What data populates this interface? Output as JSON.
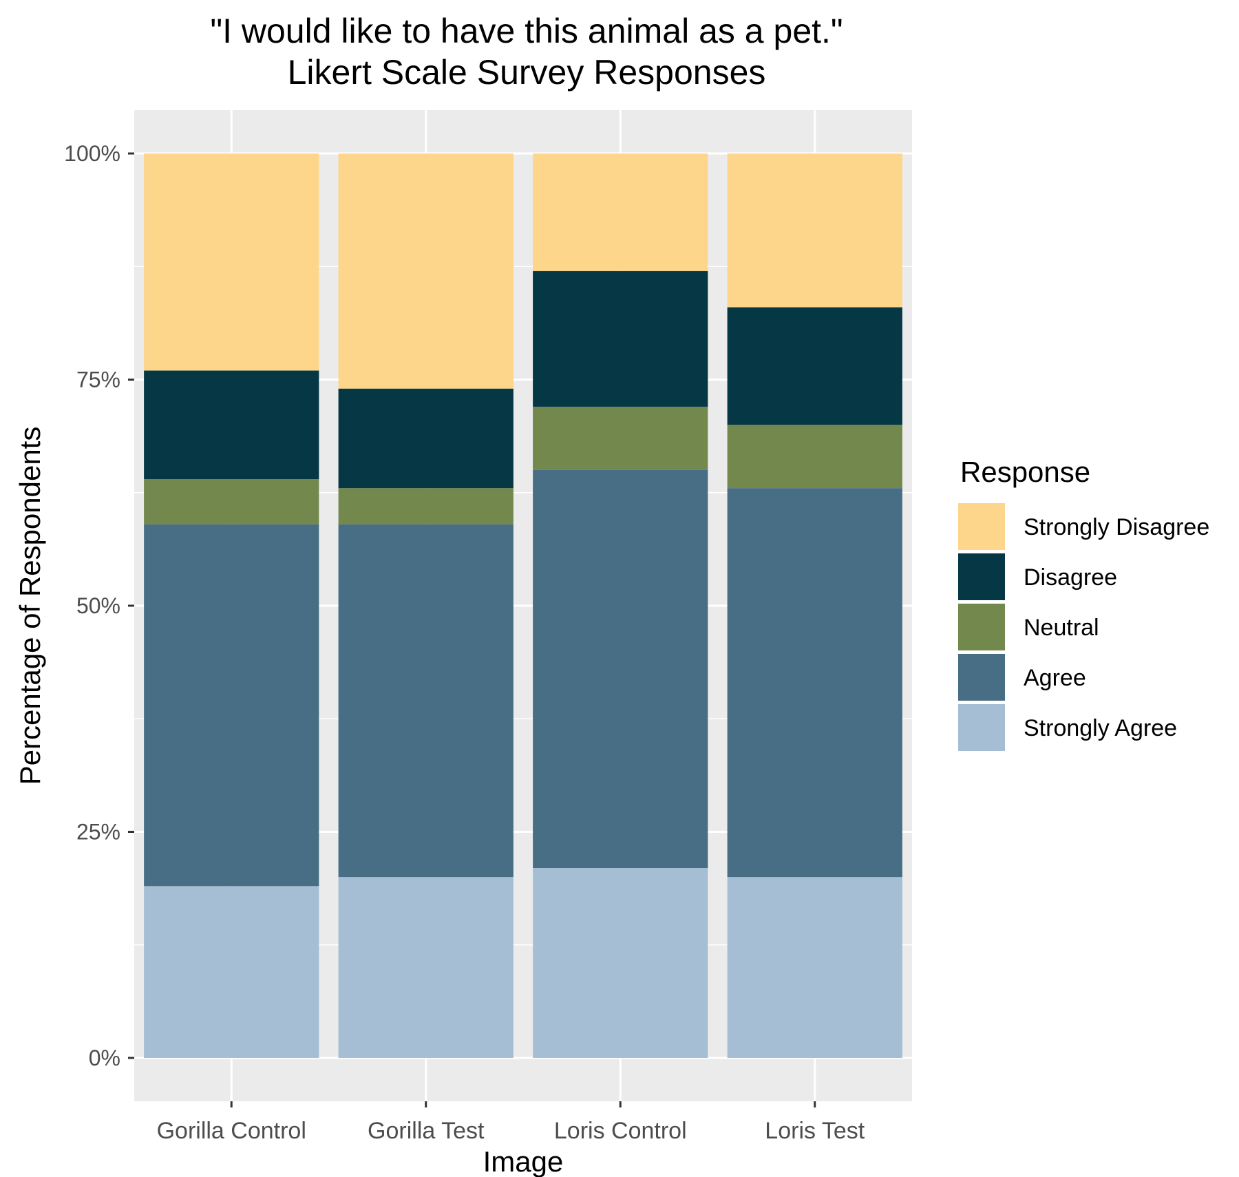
{
  "chart_data": {
    "type": "bar",
    "stacked": true,
    "title": [
      "\"I would like to have this animal as a pet.\"",
      "Likert Scale Survey Responses"
    ],
    "xlabel": "Image",
    "ylabel": "Percentage of Respondents",
    "categories": [
      "Gorilla Control",
      "Gorilla Test",
      "Loris Control",
      "Loris Test"
    ],
    "ylim": [
      0,
      1
    ],
    "yticks": [
      0,
      0.25,
      0.5,
      0.75,
      1.0
    ],
    "ytick_labels": [
      "0%",
      "25%",
      "50%",
      "75%",
      "100%"
    ],
    "grid": true,
    "legend": {
      "title": "Response",
      "placement": "right"
    },
    "series": [
      {
        "name": "Strongly Agree",
        "color": "#a6bed4",
        "values": [
          0.19,
          0.2,
          0.21,
          0.2
        ]
      },
      {
        "name": "Agree",
        "color": "#476e84",
        "values": [
          0.4,
          0.39,
          0.44,
          0.43
        ]
      },
      {
        "name": "Neutral",
        "color": "#72884d",
        "values": [
          0.05,
          0.04,
          0.07,
          0.07
        ]
      },
      {
        "name": "Disagree",
        "color": "#053745",
        "values": [
          0.12,
          0.11,
          0.15,
          0.13
        ]
      },
      {
        "name": "Strongly Disagree",
        "color": "#fdd68b",
        "values": [
          0.24,
          0.26,
          0.13,
          0.17
        ]
      }
    ],
    "legend_order": [
      "Strongly Disagree",
      "Disagree",
      "Neutral",
      "Agree",
      "Strongly Agree"
    ]
  }
}
